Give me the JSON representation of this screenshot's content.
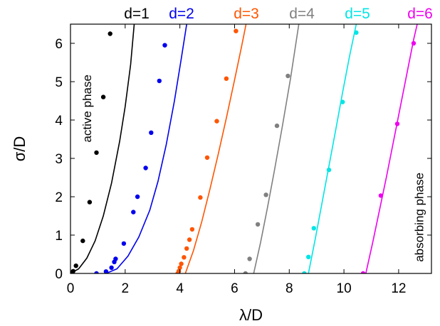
{
  "chart_data": {
    "type": "scatter",
    "xlabel": "λ/D",
    "ylabel": "σ/D",
    "xlim": [
      0,
      13.2
    ],
    "ylim": [
      0,
      6.5
    ],
    "xticks": [
      0,
      2,
      4,
      6,
      8,
      10,
      12
    ],
    "yticks": [
      0,
      1,
      2,
      3,
      4,
      5,
      6
    ],
    "xtick_labels": [
      "0",
      "2",
      "4",
      "6",
      "8",
      "10",
      "12"
    ],
    "ytick_labels": [
      "0",
      "1",
      "2",
      "3",
      "4",
      "5",
      "6"
    ],
    "grid": false,
    "legend_position": "top",
    "annotations": [
      {
        "text": "active phase",
        "x": 0.75,
        "y": 3.3,
        "rotation": -90
      },
      {
        "text": "absorbing phase",
        "x": 12.9,
        "y": 0.3,
        "rotation": -90
      }
    ],
    "series": [
      {
        "name": "d=1",
        "color": "#000000",
        "points": [
          [
            0.0,
            0.0
          ],
          [
            0.05,
            0.02
          ],
          [
            0.1,
            0.06
          ],
          [
            0.2,
            0.2
          ],
          [
            0.45,
            0.85
          ],
          [
            0.7,
            1.86
          ],
          [
            0.95,
            3.15
          ],
          [
            1.2,
            4.6
          ],
          [
            1.45,
            6.25
          ]
        ],
        "curve": [
          [
            0.0,
            0.0
          ],
          [
            0.3,
            0.12
          ],
          [
            0.6,
            0.4
          ],
          [
            0.9,
            0.85
          ],
          [
            1.2,
            1.5
          ],
          [
            1.5,
            2.35
          ],
          [
            1.8,
            3.45
          ],
          [
            2.0,
            4.35
          ],
          [
            2.2,
            5.45
          ],
          [
            2.33,
            6.5
          ]
        ]
      },
      {
        "name": "d=2",
        "color": "#0000ee",
        "points": [
          [
            0.95,
            0.0
          ],
          [
            1.3,
            0.05
          ],
          [
            1.5,
            0.15
          ],
          [
            1.6,
            0.3
          ],
          [
            1.65,
            0.38
          ],
          [
            1.95,
            0.78
          ],
          [
            2.3,
            1.6
          ],
          [
            2.45,
            2.0
          ],
          [
            2.75,
            2.75
          ],
          [
            2.95,
            3.67
          ],
          [
            3.25,
            5.02
          ],
          [
            3.45,
            5.95
          ]
        ],
        "curve": [
          [
            1.3,
            0.0
          ],
          [
            1.7,
            0.12
          ],
          [
            2.1,
            0.45
          ],
          [
            2.5,
            0.95
          ],
          [
            2.9,
            1.65
          ],
          [
            3.2,
            2.4
          ],
          [
            3.5,
            3.35
          ],
          [
            3.8,
            4.5
          ],
          [
            4.05,
            5.6
          ],
          [
            4.25,
            6.5
          ]
        ]
      },
      {
        "name": "d=3",
        "color": "#ff5500",
        "points": [
          [
            3.92,
            0.0
          ],
          [
            3.96,
            0.06
          ],
          [
            4.0,
            0.15
          ],
          [
            4.05,
            0.25
          ],
          [
            4.15,
            0.42
          ],
          [
            4.25,
            0.65
          ],
          [
            4.35,
            0.88
          ],
          [
            4.45,
            1.15
          ],
          [
            4.75,
            1.98
          ],
          [
            5.0,
            3.02
          ],
          [
            5.35,
            3.97
          ],
          [
            5.7,
            5.08
          ],
          [
            6.05,
            6.32
          ]
        ],
        "curve": [
          [
            4.2,
            0.0
          ],
          [
            4.5,
            0.6
          ],
          [
            4.8,
            1.35
          ],
          [
            5.1,
            2.2
          ],
          [
            5.4,
            3.1
          ],
          [
            5.7,
            4.05
          ],
          [
            6.0,
            5.05
          ],
          [
            6.25,
            5.9
          ],
          [
            6.42,
            6.5
          ]
        ]
      },
      {
        "name": "d=4",
        "color": "#808080",
        "points": [
          [
            6.4,
            0.0
          ],
          [
            6.55,
            0.38
          ],
          [
            6.85,
            1.28
          ],
          [
            7.15,
            2.05
          ],
          [
            7.55,
            3.85
          ],
          [
            7.95,
            5.15
          ]
        ],
        "curve": [
          [
            6.7,
            0.0
          ],
          [
            6.95,
            0.8
          ],
          [
            7.2,
            1.7
          ],
          [
            7.45,
            2.65
          ],
          [
            7.75,
            3.85
          ],
          [
            8.05,
            5.1
          ],
          [
            8.35,
            6.5
          ]
        ]
      },
      {
        "name": "d=5",
        "color": "#00e5e5",
        "points": [
          [
            8.55,
            0.0
          ],
          [
            8.7,
            0.43
          ],
          [
            8.9,
            1.18
          ],
          [
            9.45,
            2.7
          ],
          [
            9.95,
            4.47
          ],
          [
            10.45,
            6.28
          ]
        ],
        "curve": [
          [
            8.7,
            0.0
          ],
          [
            8.95,
            0.9
          ],
          [
            9.2,
            1.85
          ],
          [
            9.45,
            2.8
          ],
          [
            9.7,
            3.75
          ],
          [
            9.95,
            4.72
          ],
          [
            10.2,
            5.65
          ],
          [
            10.45,
            6.5
          ]
        ]
      },
      {
        "name": "d=6",
        "color": "#ee00ee",
        "points": [
          [
            10.7,
            0.0
          ],
          [
            11.35,
            2.03
          ],
          [
            11.95,
            3.9
          ],
          [
            12.55,
            6.0
          ]
        ],
        "curve": [
          [
            10.8,
            0.0
          ],
          [
            11.05,
            0.8
          ],
          [
            11.3,
            1.65
          ],
          [
            11.55,
            2.5
          ],
          [
            11.8,
            3.4
          ],
          [
            12.05,
            4.3
          ],
          [
            12.3,
            5.2
          ],
          [
            12.55,
            6.1
          ],
          [
            12.68,
            6.5
          ]
        ]
      }
    ]
  }
}
